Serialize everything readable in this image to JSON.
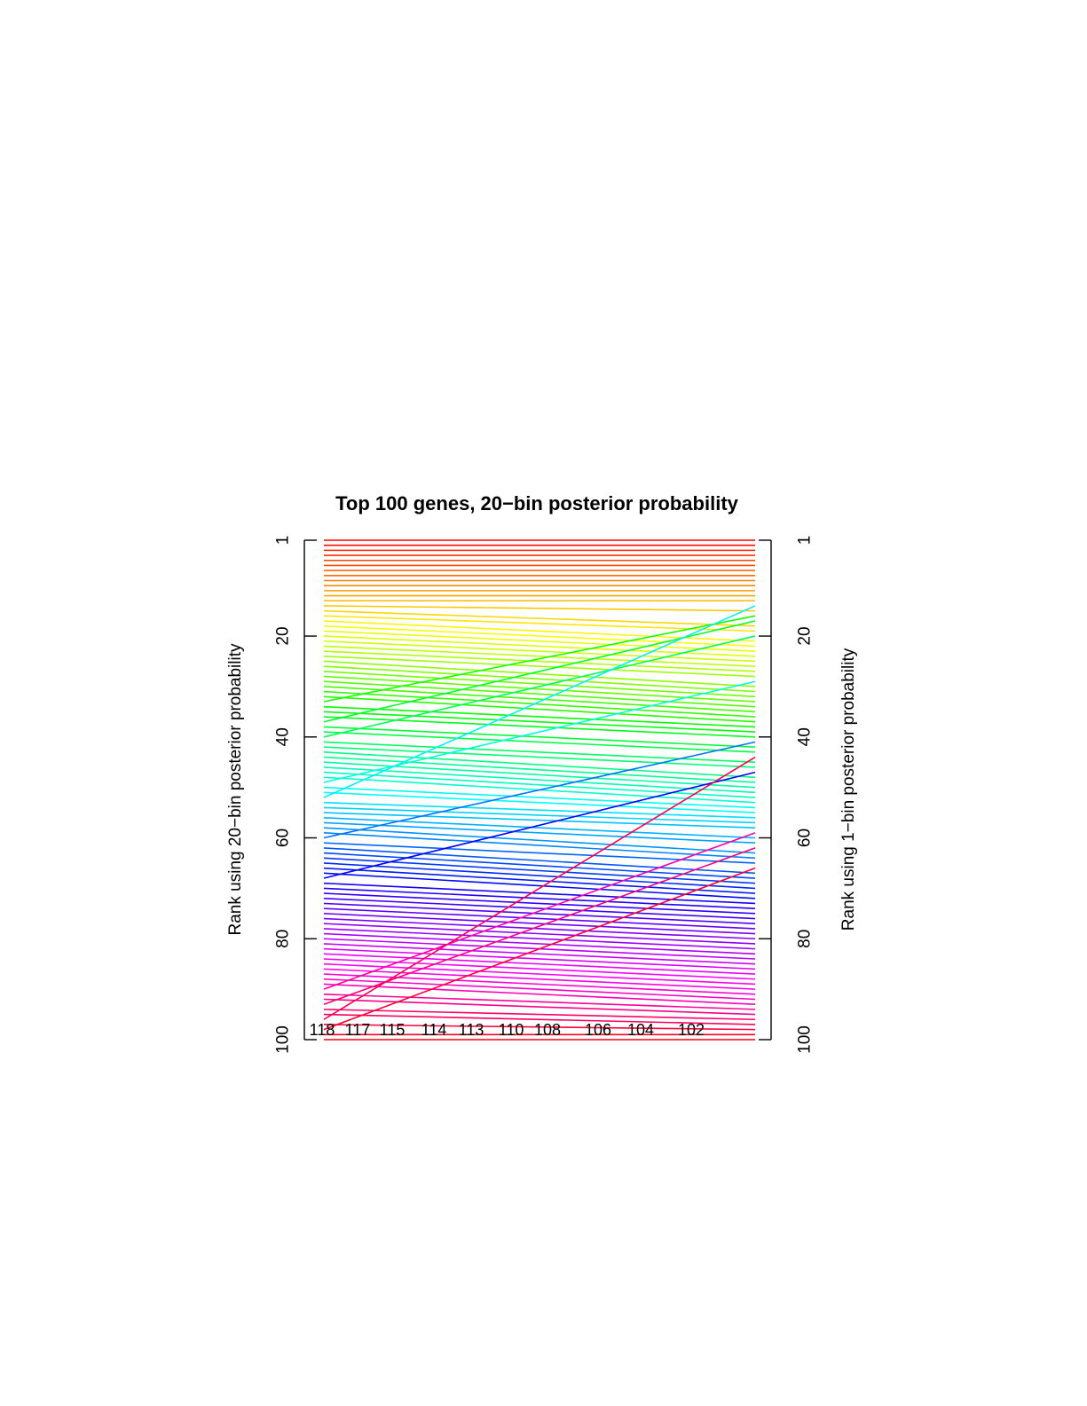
{
  "chart_data": {
    "type": "line",
    "title": "Top 100 genes, 20−bin posterior probability",
    "ylabel_left": "Rank using 20−bin posterior probability",
    "ylabel_right": "Rank using 1−bin posterior probability",
    "left_ticks": [
      "1",
      "20",
      "40",
      "60",
      "80",
      "100"
    ],
    "right_ticks": [
      "1",
      "20",
      "40",
      "60",
      "80",
      "100"
    ],
    "bottom_labels": [
      "118",
      "117",
      "115",
      "114",
      "113",
      "110",
      "108",
      "106",
      "104",
      "102"
    ],
    "ylim": [
      1,
      100
    ],
    "note_colors": "rainbow palette ordered by left rank (red at top through orange, yellow, green, cyan, blue, purple, magenta, back to red)",
    "highlighted_crossing_lines": [
      {
        "left_rank": 33,
        "right_rank": 16
      },
      {
        "left_rank": 37,
        "right_rank": 17
      },
      {
        "left_rank": 40,
        "right_rank": 20
      },
      {
        "left_rank": 49,
        "right_rank": 29
      },
      {
        "left_rank": 52,
        "right_rank": 14
      },
      {
        "left_rank": 60,
        "right_rank": 41
      },
      {
        "left_rank": 68,
        "right_rank": 47
      },
      {
        "left_rank": 90,
        "right_rank": 59
      },
      {
        "left_rank": 93,
        "right_rank": 62
      },
      {
        "left_rank": 96,
        "right_rank": 44
      },
      {
        "left_rank": 98,
        "right_rank": 66
      }
    ]
  }
}
